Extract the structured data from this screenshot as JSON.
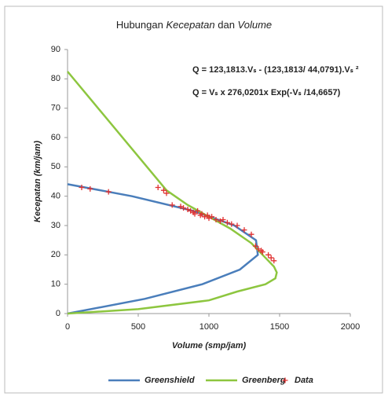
{
  "chart_data": {
    "type": "line",
    "title": [
      "Hubungan ",
      "Kecepatan",
      " dan ",
      "Volume"
    ],
    "title_italic": [
      false,
      true,
      false,
      true
    ],
    "annotations": [
      "Q  = 123,1813.Vₛ  - (123,1813/ 44,0791).Vₛ ²",
      "Q  = Vₛ x 276,0201x Exp(-Vₛ /14,6657)"
    ],
    "annotation_colors": [
      "#2e5597",
      "#4fac2a"
    ],
    "xlabel": "Volume (smp/jam)",
    "ylabel": "Kecepatan (km/jam)",
    "xlim": [
      0,
      2000
    ],
    "xticks": [
      0,
      500,
      1000,
      1500,
      2000
    ],
    "ylim": [
      0,
      90
    ],
    "yticks": [
      0,
      10,
      20,
      30,
      40,
      50,
      60,
      70,
      80,
      90
    ],
    "grid": false,
    "legend": "bottom",
    "series": [
      {
        "name": "Greenshield",
        "color": "#4a7ebb",
        "style": "line",
        "x": [
          0,
          546,
          953,
          1219,
          1346,
          1333,
          1180,
          888,
          456,
          0
        ],
        "values": [
          0,
          5,
          10,
          15,
          20,
          25,
          30,
          35,
          40,
          44.1
        ]
      },
      {
        "name": "Greenberg",
        "color": "#8dc63f",
        "style": "line",
        "x": [
          0,
          500,
          1000,
          1200,
          1400,
          1470,
          1480,
          1460,
          1400,
          1300,
          1150,
          1000,
          850,
          700,
          0
        ],
        "values": [
          0,
          1.5,
          4.5,
          7.5,
          10,
          12,
          14,
          16,
          19,
          24,
          29,
          33,
          37,
          42,
          82.5
        ]
      },
      {
        "name": "Data",
        "color": "#e03030",
        "style": "plus",
        "x": [
          100,
          160,
          290,
          640,
          680,
          700,
          740,
          800,
          820,
          850,
          870,
          890,
          900,
          920,
          940,
          950,
          970,
          990,
          1000,
          1020,
          1050,
          1080,
          1100,
          1130,
          1160,
          1200,
          1250,
          1300,
          1330,
          1350,
          1370,
          1380,
          1420,
          1440,
          1460
        ],
        "values": [
          43,
          42.5,
          41.5,
          43,
          42,
          41,
          37,
          36.5,
          36,
          35.5,
          35,
          34.5,
          34,
          35,
          33.5,
          34,
          33,
          33.5,
          32.5,
          33,
          32,
          31.5,
          32,
          31,
          30.5,
          30,
          28.5,
          27,
          23,
          22,
          21.5,
          21,
          20,
          19,
          18
        ]
      }
    ]
  }
}
